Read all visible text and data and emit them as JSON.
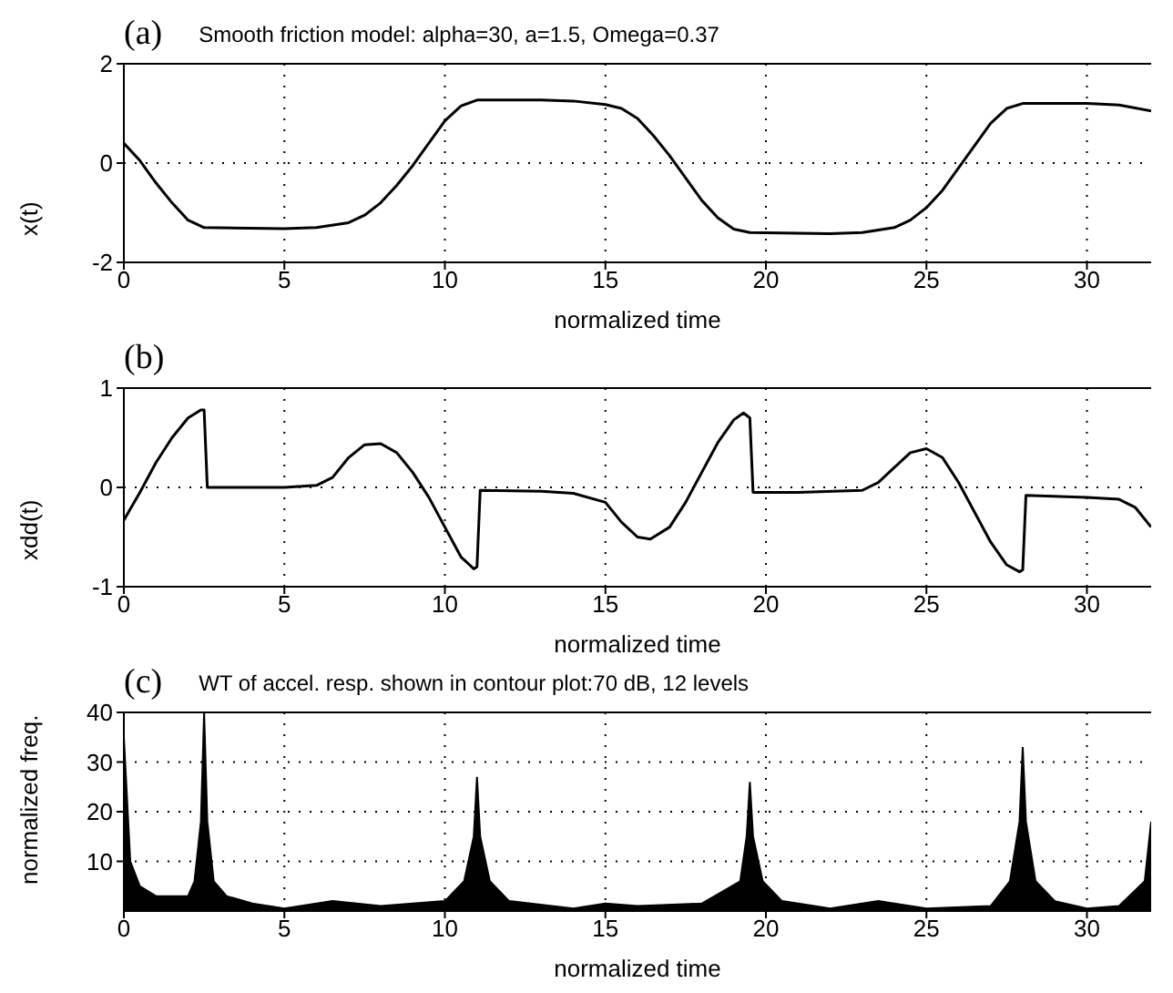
{
  "chart_data": [
    {
      "type": "line",
      "title": "Smooth friction model: alpha=30, a=1.5, Omega=0.37",
      "annotations": [
        "(a)"
      ],
      "xlabel": "normalized time",
      "ylabel": "x(t)",
      "color": "#000000",
      "grid": true,
      "xlim": [
        0,
        32
      ],
      "xticks": [
        0,
        5,
        10,
        15,
        20,
        25,
        30
      ],
      "ylim": [
        -2,
        2
      ],
      "yticks": [
        -2,
        0,
        2
      ],
      "x": [
        0,
        0.5,
        1,
        1.5,
        2,
        2.5,
        5,
        6,
        7,
        7.5,
        8,
        8.5,
        9,
        9.5,
        10,
        10.5,
        11,
        13,
        14,
        15,
        15.5,
        16,
        16.5,
        17,
        17.5,
        18,
        18.5,
        19,
        19.5,
        22,
        23,
        24,
        24.5,
        25,
        25.5,
        26,
        26.5,
        27,
        27.5,
        28,
        30,
        31,
        32
      ],
      "values": [
        0.4,
        0.05,
        -0.4,
        -0.8,
        -1.15,
        -1.3,
        -1.32,
        -1.3,
        -1.2,
        -1.05,
        -0.8,
        -0.45,
        -0.05,
        0.4,
        0.85,
        1.15,
        1.27,
        1.27,
        1.25,
        1.18,
        1.1,
        0.9,
        0.55,
        0.15,
        -0.3,
        -0.75,
        -1.1,
        -1.33,
        -1.4,
        -1.42,
        -1.4,
        -1.3,
        -1.15,
        -0.9,
        -0.55,
        -0.1,
        0.35,
        0.8,
        1.1,
        1.2,
        1.2,
        1.17,
        1.05
      ]
    },
    {
      "type": "line",
      "annotations": [
        "(b)"
      ],
      "xlabel": "normalized time",
      "ylabel": "xdd(t)",
      "color": "#000000",
      "grid": true,
      "xlim": [
        0,
        32
      ],
      "xticks": [
        0,
        5,
        10,
        15,
        20,
        25,
        30
      ],
      "ylim": [
        -1,
        1
      ],
      "yticks": [
        -1,
        0,
        1
      ],
      "x": [
        0,
        0.5,
        1,
        1.5,
        2,
        2.4,
        2.5,
        2.6,
        3,
        5,
        6,
        6.5,
        7,
        7.5,
        8,
        8.5,
        9,
        9.5,
        10,
        10.5,
        10.9,
        11,
        11.1,
        13,
        14,
        15,
        15.5,
        16,
        16.4,
        17,
        17.5,
        18,
        18.5,
        19,
        19.3,
        19.5,
        19.6,
        21,
        23,
        23.5,
        24,
        24.5,
        25,
        25.5,
        26,
        26.5,
        27,
        27.5,
        27.9,
        28,
        28.1,
        30,
        31,
        31.5,
        32
      ],
      "values": [
        -0.33,
        -0.05,
        0.25,
        0.5,
        0.7,
        0.78,
        0.78,
        0,
        0,
        0,
        0.02,
        0.1,
        0.3,
        0.43,
        0.44,
        0.35,
        0.15,
        -0.1,
        -0.4,
        -0.7,
        -0.82,
        -0.8,
        -0.03,
        -0.04,
        -0.06,
        -0.15,
        -0.35,
        -0.5,
        -0.52,
        -0.4,
        -0.15,
        0.15,
        0.45,
        0.68,
        0.75,
        0.7,
        -0.05,
        -0.05,
        -0.03,
        0.05,
        0.2,
        0.35,
        0.39,
        0.3,
        0.05,
        -0.25,
        -0.55,
        -0.78,
        -0.85,
        -0.83,
        -0.08,
        -0.1,
        -0.12,
        -0.2,
        -0.4
      ]
    },
    {
      "type": "area",
      "title": "WT of accel. resp. shown in contour plot:70 dB, 12 levels",
      "annotations": [
        "(c)"
      ],
      "xlabel": "normalized time",
      "ylabel": "normalized freq.",
      "color": "#000000",
      "grid": true,
      "xlim": [
        0,
        32
      ],
      "xticks": [
        0,
        5,
        10,
        15,
        20,
        25,
        30
      ],
      "ylim": [
        0,
        40
      ],
      "yticks": [
        10,
        20,
        30,
        40
      ],
      "x": [
        0,
        0.2,
        0.5,
        1,
        2,
        2.2,
        2.4,
        2.5,
        2.6,
        2.8,
        3.2,
        4,
        5,
        6.5,
        8,
        10,
        10.6,
        10.9,
        11,
        11.1,
        11.4,
        12,
        14,
        15,
        16,
        18,
        19.2,
        19.4,
        19.5,
        19.6,
        19.9,
        20.5,
        22,
        23.5,
        25,
        27,
        27.6,
        27.9,
        28,
        28.1,
        28.4,
        29,
        30,
        31,
        31.8,
        32
      ],
      "values": [
        35,
        10,
        5,
        3,
        3,
        6,
        18,
        40,
        18,
        6,
        3,
        1.5,
        0.5,
        2,
        1,
        2,
        6,
        15,
        27,
        15,
        6,
        2,
        0.5,
        1.5,
        1,
        1.5,
        6,
        15,
        26,
        15,
        6,
        2,
        0.5,
        2,
        0.5,
        1,
        6,
        18,
        33,
        18,
        6,
        2,
        0.5,
        1,
        6,
        18
      ]
    }
  ]
}
